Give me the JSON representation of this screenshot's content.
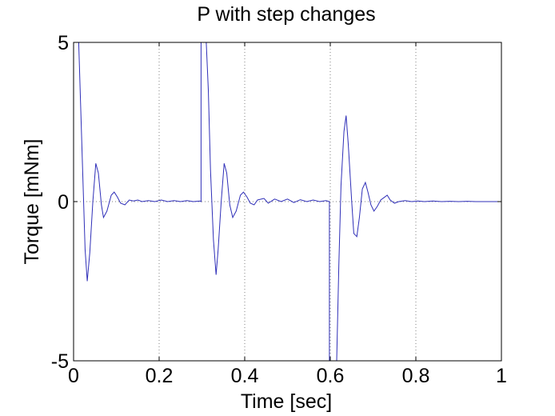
{
  "chart_data": {
    "type": "line",
    "title": "P with step changes",
    "xlabel": "Time [sec]",
    "ylabel": "Torque [mNm]",
    "xlim": [
      0,
      1
    ],
    "ylim": [
      -5,
      5
    ],
    "xticks": [
      0,
      0.2,
      0.4,
      0.6,
      0.8,
      1
    ],
    "xtick_labels": [
      "0",
      "0.2",
      "0.4",
      "0.6",
      "0.8",
      "1"
    ],
    "yticks": [
      -5,
      0,
      5
    ],
    "ytick_labels": [
      "-5",
      "0",
      "5"
    ],
    "grid": "dotted",
    "series": [
      {
        "color": "#2f2fb8",
        "points": [
          [
            0.0,
            5.0
          ],
          [
            0.012,
            5.0
          ],
          [
            0.02,
            1.5
          ],
          [
            0.027,
            -1.5
          ],
          [
            0.032,
            -2.5
          ],
          [
            0.038,
            -1.6
          ],
          [
            0.045,
            0.0
          ],
          [
            0.052,
            1.2
          ],
          [
            0.058,
            0.9
          ],
          [
            0.065,
            -0.1
          ],
          [
            0.07,
            -0.5
          ],
          [
            0.078,
            -0.3
          ],
          [
            0.088,
            0.2
          ],
          [
            0.095,
            0.3
          ],
          [
            0.102,
            0.15
          ],
          [
            0.11,
            -0.05
          ],
          [
            0.12,
            -0.1
          ],
          [
            0.13,
            0.05
          ],
          [
            0.14,
            0.02
          ],
          [
            0.15,
            0.05
          ],
          [
            0.16,
            0.0
          ],
          [
            0.175,
            0.03
          ],
          [
            0.19,
            0.0
          ],
          [
            0.205,
            0.05
          ],
          [
            0.22,
            0.0
          ],
          [
            0.235,
            0.03
          ],
          [
            0.25,
            0.0
          ],
          [
            0.265,
            0.03
          ],
          [
            0.28,
            0.0
          ],
          [
            0.295,
            0.02
          ],
          [
            0.298,
            0.0
          ],
          [
            0.298,
            5.0
          ],
          [
            0.31,
            5.0
          ],
          [
            0.315,
            3.5
          ],
          [
            0.32,
            1.0
          ],
          [
            0.327,
            -1.2
          ],
          [
            0.333,
            -2.3
          ],
          [
            0.338,
            -1.5
          ],
          [
            0.345,
            0.0
          ],
          [
            0.352,
            1.2
          ],
          [
            0.358,
            0.9
          ],
          [
            0.365,
            -0.1
          ],
          [
            0.372,
            -0.5
          ],
          [
            0.38,
            -0.3
          ],
          [
            0.39,
            0.2
          ],
          [
            0.397,
            0.3
          ],
          [
            0.405,
            0.15
          ],
          [
            0.413,
            -0.05
          ],
          [
            0.422,
            -0.1
          ],
          [
            0.43,
            0.05
          ],
          [
            0.445,
            0.1
          ],
          [
            0.455,
            -0.05
          ],
          [
            0.47,
            0.08
          ],
          [
            0.485,
            0.0
          ],
          [
            0.5,
            0.08
          ],
          [
            0.515,
            -0.03
          ],
          [
            0.53,
            0.06
          ],
          [
            0.545,
            0.0
          ],
          [
            0.56,
            0.05
          ],
          [
            0.575,
            0.0
          ],
          [
            0.59,
            0.03
          ],
          [
            0.598,
            0.0
          ],
          [
            0.598,
            -5.0
          ],
          [
            0.615,
            -5.0
          ],
          [
            0.62,
            -2.0
          ],
          [
            0.625,
            0.5
          ],
          [
            0.632,
            2.2
          ],
          [
            0.637,
            2.7
          ],
          [
            0.642,
            1.8
          ],
          [
            0.65,
            0.0
          ],
          [
            0.655,
            -1.0
          ],
          [
            0.662,
            -1.1
          ],
          [
            0.668,
            -0.5
          ],
          [
            0.675,
            0.4
          ],
          [
            0.682,
            0.6
          ],
          [
            0.688,
            0.3
          ],
          [
            0.695,
            -0.1
          ],
          [
            0.702,
            -0.3
          ],
          [
            0.71,
            -0.15
          ],
          [
            0.718,
            0.05
          ],
          [
            0.725,
            0.12
          ],
          [
            0.733,
            0.2
          ],
          [
            0.74,
            0.05
          ],
          [
            0.75,
            -0.05
          ],
          [
            0.76,
            0.0
          ],
          [
            0.775,
            0.03
          ],
          [
            0.79,
            0.0
          ],
          [
            0.805,
            0.02
          ],
          [
            0.82,
            0.0
          ],
          [
            0.84,
            0.02
          ],
          [
            0.86,
            0.0
          ],
          [
            0.88,
            0.01
          ],
          [
            0.9,
            0.0
          ],
          [
            0.92,
            0.01
          ],
          [
            0.94,
            0.0
          ],
          [
            0.96,
            0.0
          ],
          [
            0.98,
            0.0
          ],
          [
            1.0,
            0.0
          ]
        ]
      }
    ]
  }
}
